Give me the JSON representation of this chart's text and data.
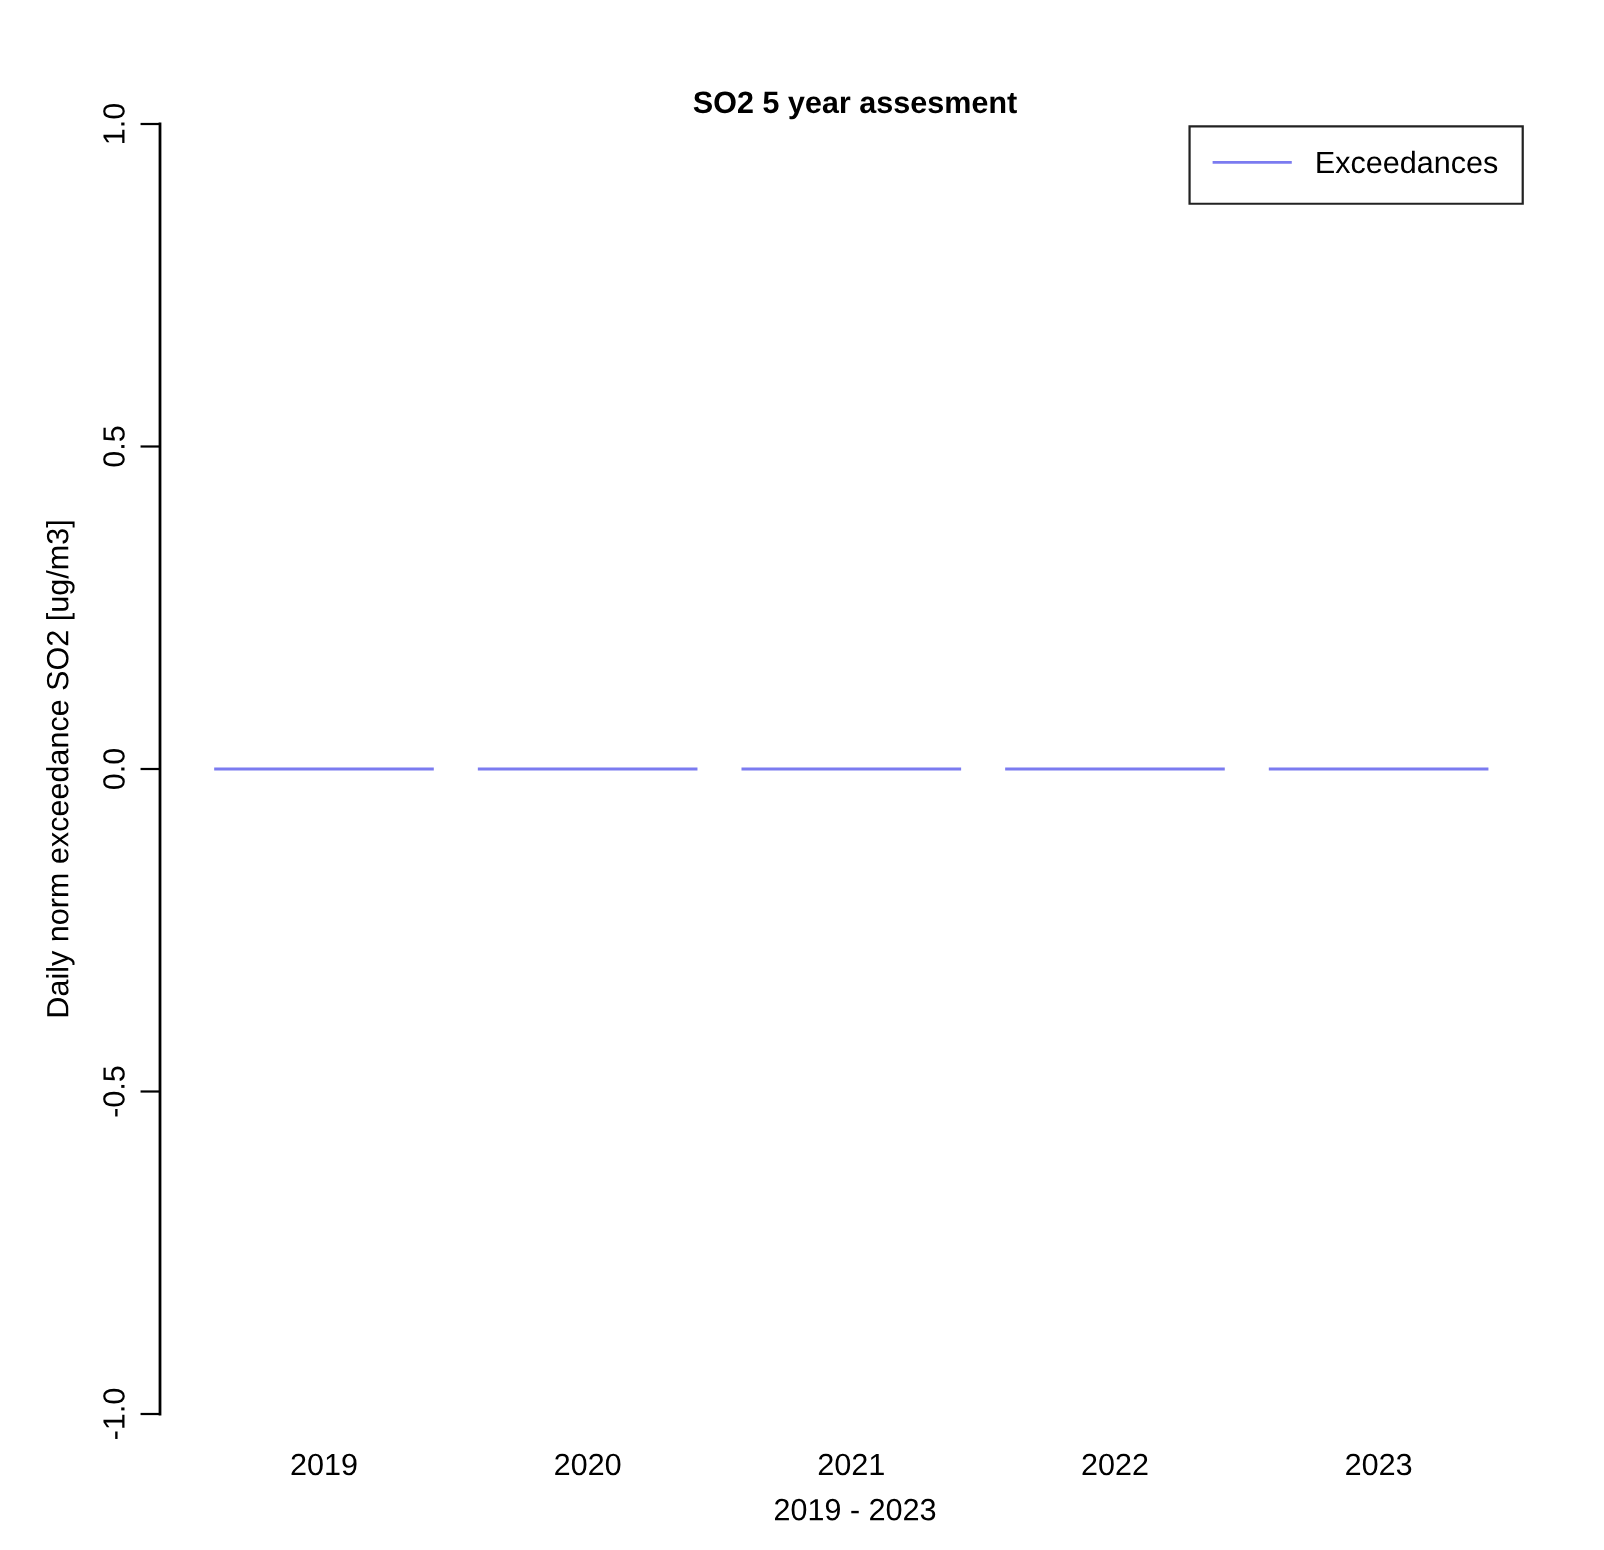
{
  "chart_data": {
    "type": "bar",
    "title": "SO2 5 year assesment",
    "xlabel": "2019 - 2023",
    "ylabel": "Daily norm exceedance SO2 [ug/m3]",
    "categories": [
      "2019",
      "2020",
      "2021",
      "2022",
      "2023"
    ],
    "series": [
      {
        "name": "Exceedances",
        "color": "#7b7bf0",
        "values": [
          0,
          0,
          0,
          0,
          0
        ]
      }
    ],
    "ylim": [
      -1.0,
      1.0
    ],
    "yticks": [
      {
        "value": -1.0,
        "label": "-1.0"
      },
      {
        "value": -0.5,
        "label": "-0.5"
      },
      {
        "value": 0.0,
        "label": "0.0"
      },
      {
        "value": 0.5,
        "label": "0.5"
      },
      {
        "value": 1.0,
        "label": "1.0"
      }
    ],
    "grid": false,
    "legend": "top right"
  }
}
